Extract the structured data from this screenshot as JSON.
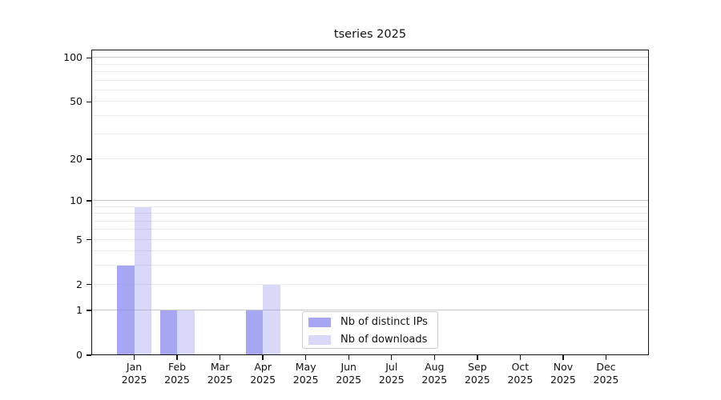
{
  "title": "tseries 2025",
  "chart_data": {
    "type": "bar",
    "title": "tseries 2025",
    "categories": [
      "Jan",
      "Feb",
      "Mar",
      "Apr",
      "May",
      "Jun",
      "Jul",
      "Aug",
      "Sep",
      "Oct",
      "Nov",
      "Dec"
    ],
    "category_year": "2025",
    "series": [
      {
        "name": "Nb of distinct IPs",
        "base_color": "#8888ee",
        "alpha": 0.75,
        "values": [
          3,
          1,
          0,
          1,
          0,
          0,
          0,
          0,
          0,
          0,
          0,
          0
        ]
      },
      {
        "name": "Nb of downloads",
        "base_color": "#8888ee",
        "alpha": 0.33,
        "values": [
          9,
          1,
          0,
          2,
          0,
          0,
          0,
          0,
          0,
          0,
          0,
          0
        ]
      }
    ],
    "xlabel": "",
    "ylabel": "",
    "y_axis": {
      "scale": "log1p",
      "tick_values": [
        0,
        1,
        2,
        5,
        10,
        20,
        50,
        100
      ],
      "max_value": 114,
      "grid_major": [
        1,
        10,
        100
      ],
      "grid_minor": [
        2,
        3,
        4,
        5,
        6,
        7,
        8,
        9,
        20,
        30,
        40,
        50,
        60,
        70,
        80,
        90,
        110
      ]
    },
    "grid": "horizontal",
    "legend_position": "lower-center"
  },
  "colors": {
    "grid_major": "#c9c9c9",
    "grid_minor": "#ececec",
    "axis_frame": "#111111",
    "text": "#111111",
    "legend_border": "#cccccc",
    "background": "#ffffff"
  }
}
